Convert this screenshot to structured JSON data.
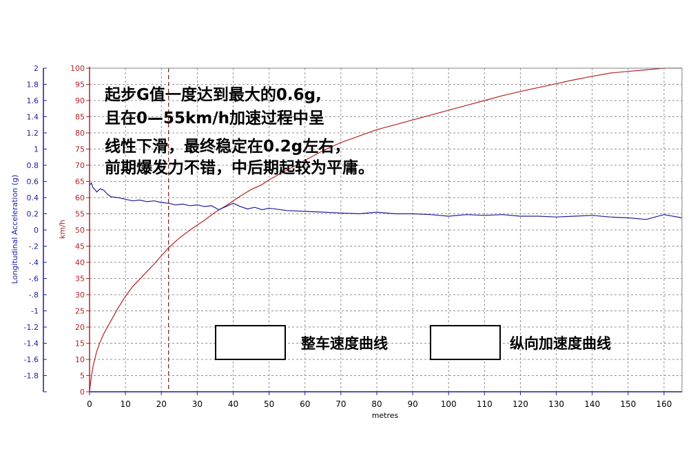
{
  "chart_data": {
    "type": "line",
    "title": "",
    "xlabel": "metres",
    "ylabel_left": "Longitudinal Acceleration (g)",
    "ylabel_right": "km/h",
    "xlim": [
      0,
      165
    ],
    "ylim_left": [
      -2,
      2
    ],
    "ylim_right": [
      0,
      100
    ],
    "xticks": [
      0,
      10,
      20,
      30,
      40,
      50,
      60,
      70,
      80,
      90,
      100,
      110,
      120,
      130,
      140,
      150,
      160
    ],
    "yticks_left": [
      2,
      1.8,
      1.6,
      1.4,
      1.2,
      1,
      0.8,
      0.6,
      0.4,
      0.2,
      0,
      -0.2,
      -0.4,
      -0.6,
      -0.8,
      -1,
      -1.2,
      -1.4,
      -1.6,
      -1.8,
      -2
    ],
    "yticks_left_labels": [
      "2",
      "1.8",
      "1.6",
      "1.4",
      "1.2",
      "1",
      "0.8",
      "0.6",
      "0.4",
      "0.2",
      "0",
      "-.2",
      "-.4",
      "-.6",
      "-.8",
      "-1",
      "-1.2",
      "-1.4",
      "-1.6",
      "-1.8",
      ""
    ],
    "yticks_right": [
      100,
      95,
      90,
      85,
      80,
      75,
      70,
      65,
      60,
      55,
      50,
      45,
      40,
      35,
      30,
      25,
      20,
      15,
      10,
      5,
      0
    ],
    "grid": true,
    "marker_x": 22,
    "series": [
      {
        "name": "整车速度曲线",
        "axis": "right",
        "color": "#b22222",
        "x": [
          0,
          0.3,
          0.7,
          1,
          2,
          3,
          4,
          5,
          6,
          8,
          10,
          12,
          15,
          18,
          20,
          22,
          25,
          28,
          30,
          32,
          35,
          38,
          40,
          42,
          45,
          48,
          50,
          55,
          60,
          65,
          70,
          75,
          80,
          85,
          90,
          95,
          100,
          105,
          110,
          115,
          120,
          125,
          130,
          135,
          140,
          145,
          150,
          155,
          160,
          165
        ],
        "values": [
          0,
          3,
          6,
          8,
          12.5,
          15.5,
          18,
          20,
          22,
          26,
          29.5,
          32.5,
          36,
          39.5,
          42,
          44.5,
          47.5,
          50,
          51.5,
          53,
          55.5,
          57.5,
          59,
          60.5,
          62.5,
          64,
          65.5,
          68.5,
          71.5,
          74.5,
          77,
          79,
          81,
          82.5,
          84,
          85.5,
          87,
          88.5,
          90,
          91.5,
          92.8,
          94,
          95.2,
          96.4,
          97.5,
          98.5,
          99,
          99.5,
          100,
          100
        ]
      },
      {
        "name": "纵向加速度曲线",
        "axis": "left",
        "color": "#1c1c9c",
        "x": [
          0,
          0.5,
          1,
          1.5,
          2,
          3,
          4,
          5,
          6,
          8,
          10,
          12,
          14,
          16,
          18,
          20,
          22,
          24,
          26,
          28,
          30,
          32,
          34,
          36,
          38,
          40,
          42,
          44,
          46,
          48,
          50,
          55,
          60,
          65,
          70,
          75,
          80,
          85,
          90,
          95,
          100,
          105,
          110,
          115,
          120,
          125,
          130,
          135,
          140,
          145,
          150,
          155,
          160,
          165
        ],
        "values": [
          0.55,
          0.58,
          0.52,
          0.5,
          0.47,
          0.51,
          0.49,
          0.44,
          0.41,
          0.4,
          0.38,
          0.36,
          0.37,
          0.35,
          0.36,
          0.34,
          0.33,
          0.31,
          0.32,
          0.3,
          0.31,
          0.29,
          0.3,
          0.25,
          0.29,
          0.33,
          0.29,
          0.26,
          0.28,
          0.25,
          0.27,
          0.24,
          0.23,
          0.22,
          0.21,
          0.2,
          0.22,
          0.2,
          0.2,
          0.19,
          0.17,
          0.19,
          0.18,
          0.19,
          0.17,
          0.17,
          0.16,
          0.17,
          0.18,
          0.16,
          0.15,
          0.13,
          0.19,
          0.15
        ]
      }
    ]
  },
  "annotation": {
    "line1": "起步G值一度达到最大的0.6g,",
    "line2": "且在0—55km/h加速过程中呈",
    "line3": "线性下滑，最终稳定在0.2g左右，",
    "line4": "前期爆发力不错，中后期起较为平庸。"
  },
  "legend": {
    "speed_label": "整车速度曲线",
    "accel_label": "纵向加速度曲线"
  }
}
